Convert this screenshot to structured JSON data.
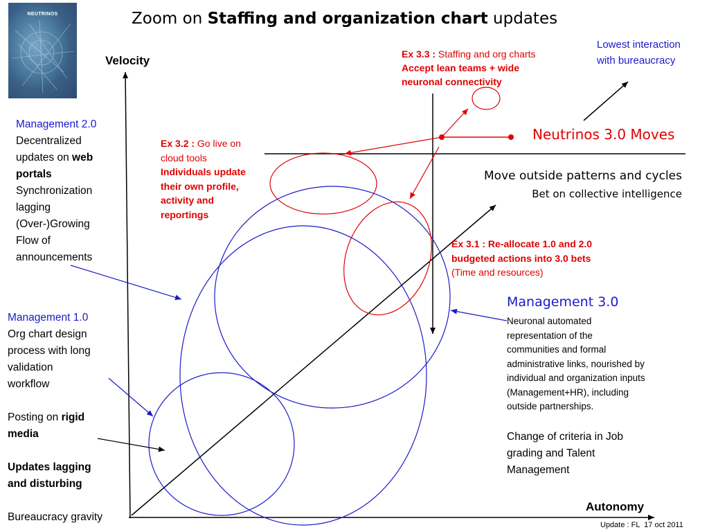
{
  "slide": {
    "title_pre": "Zoom on ",
    "title_bold": "Staffing and organization chart",
    "title_post": " updates",
    "thumbnail_label": "NEUTRINOS",
    "footer": "Update : FL  17 oct 2011"
  },
  "axes": {
    "y_label": "Velocity",
    "x_label": "Autonomy"
  },
  "top_right": {
    "line1": "Lowest interaction",
    "line2": "with bureaucracy"
  },
  "ex33": {
    "head": "Ex 3.3 :",
    "head_rest": " Staffing and org charts",
    "bold1": "Accept lean teams + wide",
    "bold2": "neuronal connectivity"
  },
  "ex32": {
    "head": "Ex 3.2 :",
    "head_rest": " Go live on",
    "line2": "cloud tools",
    "bold1": "Individuals update",
    "bold2": "their own profile,",
    "bold3": "activity and",
    "bold4": "reportings"
  },
  "ex31": {
    "bold1": "Ex 3.1 : Re-allocate 1.0 and 2.0",
    "bold2": "budgeted actions into 3.0 bets",
    "line3": "(Time and resources)"
  },
  "neutrinos": {
    "moves": "Neutrinos 3.0 Moves",
    "patterns": "Move outside patterns and cycles",
    "collective": "Bet on collective intelligence"
  },
  "mgmt20": {
    "title": "Management 2.0",
    "l1": "Decentralized",
    "l2_pre": "updates on ",
    "l2_bold": "web",
    "l3_bold": "portals",
    "l4": "Synchronization",
    "l5": "lagging",
    "l6": "(Over-)Growing",
    "l7": "Flow of",
    "l8": "announcements"
  },
  "mgmt10": {
    "title": "Management 1.0",
    "l1": "Org chart design",
    "l2": "process with long",
    "l3": "validation",
    "l4": "workflow",
    "l5_pre": "Posting on ",
    "l5_bold": "rigid",
    "l6_bold": "media",
    "l7_bold": "Updates lagging",
    "l8_bold": "and disturbing",
    "l9": "Bureaucracy gravity"
  },
  "mgmt30": {
    "title": "Management 3.0",
    "d1": "Neuronal automated",
    "d2": "representation of the",
    "d3": "communities and formal",
    "d4": "administrative links, nourished by",
    "d5": "individual and organization inputs",
    "d6": "(Management+HR), including",
    "d7": "outside partnerships.",
    "c1": "Change of criteria in Job",
    "c2": "grading and Talent",
    "c3": "Management"
  },
  "colors": {
    "blue": "#1a1ac8",
    "red": "#e00000",
    "black": "#000000"
  }
}
